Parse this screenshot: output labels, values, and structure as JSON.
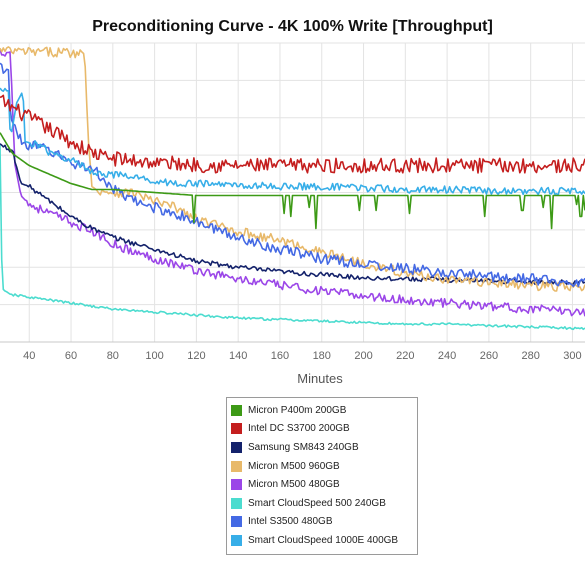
{
  "chart_data": {
    "type": "line",
    "title": "Preconditioning Curve - 4K 100% Write [Throughput]",
    "xlabel": "Minutes",
    "ylabel": "",
    "xlim": [
      26,
      306
    ],
    "ylim": [
      0,
      100
    ],
    "x_ticks": [
      40,
      60,
      80,
      100,
      120,
      140,
      160,
      180,
      200,
      220,
      240,
      260,
      280,
      300
    ],
    "grid": true,
    "legend_position": "bottom",
    "series": [
      {
        "name": "Micron P400m 200GB",
        "color": "#3d9a16",
        "points": [
          [
            26,
            70
          ],
          [
            32,
            63
          ],
          [
            40,
            59
          ],
          [
            50,
            56
          ],
          [
            60,
            53
          ],
          [
            70,
            51
          ],
          [
            80,
            51
          ],
          [
            100,
            50
          ],
          [
            120,
            49
          ],
          [
            140,
            49
          ],
          [
            160,
            49
          ],
          [
            200,
            49
          ],
          [
            240,
            49
          ],
          [
            280,
            49
          ],
          [
            306,
            49
          ]
        ],
        "dips": [
          [
            119,
            40
          ],
          [
            162,
            43
          ],
          [
            165,
            42
          ],
          [
            174,
            45
          ],
          [
            177,
            38
          ],
          [
            198,
            44
          ],
          [
            206,
            44
          ],
          [
            222,
            43
          ],
          [
            258,
            42
          ],
          [
            276,
            44
          ],
          [
            286,
            45
          ],
          [
            290,
            38
          ],
          [
            302,
            46
          ],
          [
            304,
            42
          ],
          [
            306,
            44
          ]
        ]
      },
      {
        "name": "Intel DC S3700 200GB",
        "color": "#c41e1e",
        "points": [
          [
            26,
            81
          ],
          [
            35,
            77
          ],
          [
            45,
            73
          ],
          [
            55,
            69
          ],
          [
            65,
            65
          ],
          [
            75,
            62
          ],
          [
            85,
            61
          ],
          [
            100,
            60
          ],
          [
            130,
            59
          ],
          [
            160,
            59
          ],
          [
            200,
            59
          ],
          [
            240,
            59
          ],
          [
            280,
            59
          ],
          [
            306,
            59
          ]
        ],
        "noise": 2.5
      },
      {
        "name": "Samsung SM843 240GB",
        "color": "#14226b",
        "points": [
          [
            26,
            66
          ],
          [
            32,
            64
          ],
          [
            36,
            53
          ],
          [
            40,
            52
          ],
          [
            50,
            47
          ],
          [
            60,
            42
          ],
          [
            70,
            38
          ],
          [
            80,
            35
          ],
          [
            90,
            33
          ],
          [
            100,
            31
          ],
          [
            110,
            29
          ],
          [
            120,
            27
          ],
          [
            140,
            25
          ],
          [
            160,
            23.5
          ],
          [
            180,
            22.5
          ],
          [
            200,
            21.5
          ],
          [
            230,
            21
          ],
          [
            260,
            20.5
          ],
          [
            290,
            20
          ],
          [
            306,
            20
          ]
        ],
        "noise": 0.8
      },
      {
        "name": "Micron M500 960GB",
        "color": "#e8b96a",
        "points": [
          [
            26,
            97.5
          ],
          [
            40,
            97
          ],
          [
            55,
            97
          ],
          [
            66,
            96.5
          ],
          [
            67,
            91
          ],
          [
            68,
            70
          ],
          [
            70,
            52
          ],
          [
            72,
            51
          ],
          [
            80,
            50
          ],
          [
            90,
            50
          ],
          [
            100,
            47
          ],
          [
            110,
            45
          ],
          [
            120,
            41
          ],
          [
            140,
            37
          ],
          [
            160,
            34
          ],
          [
            180,
            30
          ],
          [
            200,
            26.5
          ],
          [
            220,
            23
          ],
          [
            240,
            21
          ],
          [
            260,
            20
          ],
          [
            280,
            19
          ],
          [
            306,
            18
          ]
        ],
        "noise": 1.6
      },
      {
        "name": "Micron M500 480GB",
        "color": "#9b46e8",
        "points": [
          [
            26,
            97
          ],
          [
            31,
            97
          ],
          [
            33,
            60
          ],
          [
            36,
            49
          ],
          [
            40,
            46
          ],
          [
            50,
            43
          ],
          [
            60,
            40
          ],
          [
            70,
            37
          ],
          [
            80,
            33
          ],
          [
            90,
            30
          ],
          [
            100,
            28
          ],
          [
            110,
            26
          ],
          [
            120,
            24
          ],
          [
            140,
            21
          ],
          [
            160,
            19
          ],
          [
            180,
            17
          ],
          [
            200,
            15.5
          ],
          [
            220,
            14
          ],
          [
            240,
            13
          ],
          [
            260,
            12
          ],
          [
            280,
            11
          ],
          [
            306,
            10
          ]
        ],
        "noise": 1.5
      },
      {
        "name": "Smart CloudSpeed 500 240GB",
        "color": "#4cdccf",
        "points": [
          [
            26,
            66
          ],
          [
            27,
            18
          ],
          [
            30,
            16
          ],
          [
            40,
            15
          ],
          [
            50,
            14
          ],
          [
            60,
            13
          ],
          [
            80,
            11
          ],
          [
            100,
            10
          ],
          [
            120,
            9
          ],
          [
            140,
            8
          ],
          [
            160,
            7.5
          ],
          [
            180,
            7
          ],
          [
            200,
            6.5
          ],
          [
            220,
            6
          ],
          [
            240,
            6
          ],
          [
            260,
            5.5
          ],
          [
            280,
            5
          ],
          [
            306,
            4.5
          ]
        ],
        "noise": 0.4
      },
      {
        "name": "Intel S3500 480GB",
        "color": "#4469e4",
        "points": [
          [
            26,
            92
          ],
          [
            30,
            91
          ],
          [
            31,
            75
          ],
          [
            33,
            72
          ],
          [
            36,
            67
          ],
          [
            40,
            66
          ],
          [
            50,
            64
          ],
          [
            60,
            60
          ],
          [
            70,
            58
          ],
          [
            75,
            55
          ],
          [
            80,
            51
          ],
          [
            90,
            47
          ],
          [
            100,
            45
          ],
          [
            110,
            43
          ],
          [
            120,
            40
          ],
          [
            140,
            35
          ],
          [
            160,
            31
          ],
          [
            180,
            28
          ],
          [
            200,
            26
          ],
          [
            220,
            24.5
          ],
          [
            240,
            23
          ],
          [
            260,
            22
          ],
          [
            280,
            21
          ],
          [
            306,
            20
          ]
        ],
        "noise": 1.8
      },
      {
        "name": "Smart CloudSpeed 1000E 400GB",
        "color": "#37aee8",
        "points": [
          [
            26,
            84
          ],
          [
            30,
            84
          ],
          [
            31,
            68
          ],
          [
            34,
            80
          ],
          [
            37,
            84
          ],
          [
            38,
            67
          ],
          [
            45,
            66
          ],
          [
            50,
            63
          ],
          [
            60,
            61
          ],
          [
            65,
            59
          ],
          [
            70,
            57
          ],
          [
            80,
            56
          ],
          [
            90,
            55
          ],
          [
            100,
            54
          ],
          [
            110,
            53
          ],
          [
            120,
            53
          ],
          [
            140,
            52.5
          ],
          [
            160,
            52
          ],
          [
            180,
            52
          ],
          [
            200,
            51.5
          ],
          [
            220,
            51
          ],
          [
            240,
            51
          ],
          [
            260,
            50.5
          ],
          [
            280,
            50.5
          ],
          [
            306,
            50.5
          ]
        ],
        "noise": 1.2
      }
    ]
  }
}
